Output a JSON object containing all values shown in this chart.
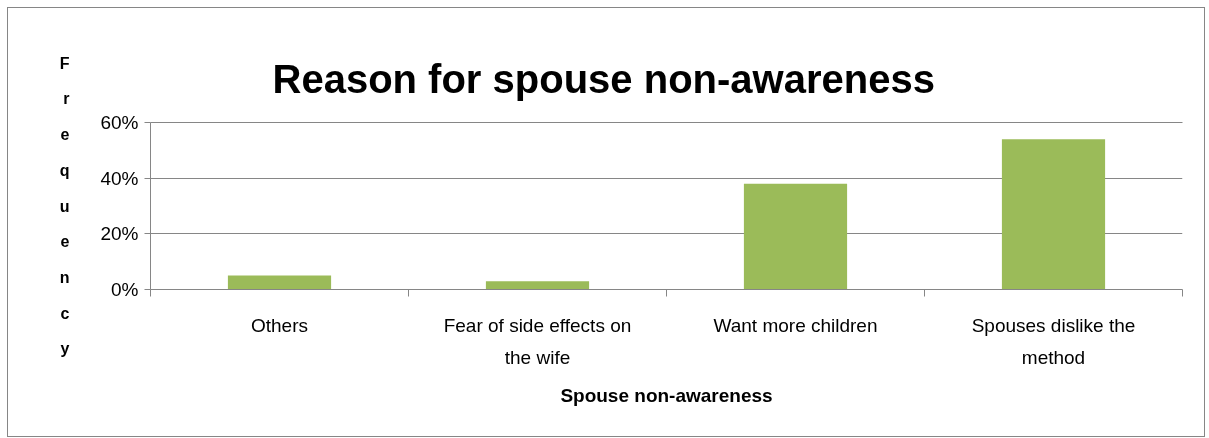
{
  "chart_data": {
    "type": "bar",
    "title": "Reason for spouse non-awareness",
    "xlabel": "Spouse non-awareness",
    "ylabel": "Frequency",
    "categories": [
      "Others",
      "Fear of side effects on the wife",
      "Want more children",
      "Spouses dislike the method"
    ],
    "values": [
      5,
      3,
      38,
      54
    ],
    "color": "#9bbb59",
    "ylim": [
      0,
      60
    ],
    "yticks": [
      {
        "value": 0,
        "label": "0%"
      },
      {
        "value": 20,
        "label": "20%"
      },
      {
        "value": 40,
        "label": "40%"
      },
      {
        "value": 60,
        "label": "60%"
      }
    ],
    "grid": "y"
  }
}
